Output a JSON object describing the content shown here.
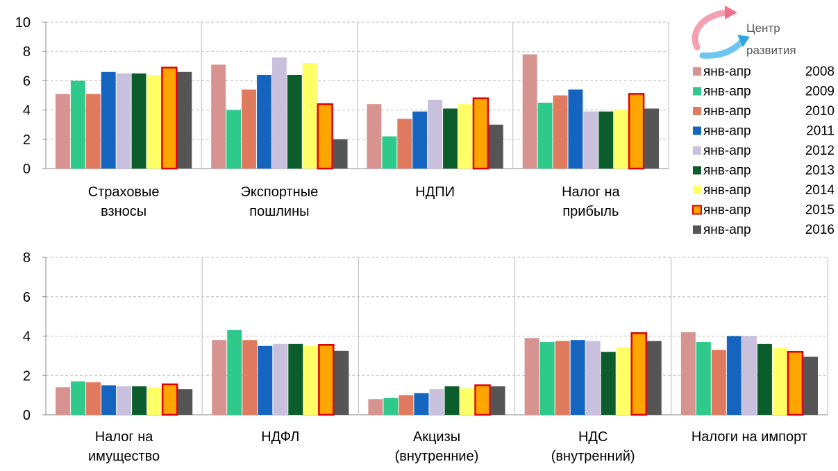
{
  "logo": {
    "line1": "Центр",
    "line2": "развития"
  },
  "colors": {
    "series": [
      "#d69390",
      "#2fc98c",
      "#e07a5f",
      "#1565c0",
      "#c9c0dd",
      "#0b5e2b",
      "#ffff66",
      "#ffa500",
      "#555555"
    ],
    "highlight_edge": "#e00000",
    "grid": "#bbbbbb",
    "axis": "#888888"
  },
  "legend": [
    {
      "label": "янв-апр",
      "year": "2008"
    },
    {
      "label": "янв-апр",
      "year": "2009"
    },
    {
      "label": "янв-апр",
      "year": "2010"
    },
    {
      "label": "янв-апр",
      "year": "2011"
    },
    {
      "label": "янв-апр",
      "year": "2012"
    },
    {
      "label": "янв-апр",
      "year": "2013"
    },
    {
      "label": "янв-апр",
      "year": "2014"
    },
    {
      "label": "янв-апр",
      "year": "2015"
    },
    {
      "label": "янв-апр",
      "year": "2016"
    }
  ],
  "chart_data": [
    {
      "type": "bar",
      "categories": [
        [
          "Страховые",
          "взносы"
        ],
        [
          "Экспортные",
          "пошлины"
        ],
        [
          "НДПИ"
        ],
        [
          "Налог  на",
          "прибыль"
        ]
      ],
      "ylim": [
        0,
        10
      ],
      "yticks": [
        0,
        2,
        4,
        6,
        8,
        10
      ],
      "grid": true,
      "legend_position": "right",
      "series": [
        {
          "name": "янв-апр 2008",
          "values": [
            5.1,
            7.1,
            4.4,
            7.8
          ]
        },
        {
          "name": "янв-апр 2009",
          "values": [
            6.0,
            4.0,
            2.2,
            4.5
          ]
        },
        {
          "name": "янв-апр 2010",
          "values": [
            5.1,
            5.4,
            3.4,
            5.0
          ]
        },
        {
          "name": "янв-апр 2011",
          "values": [
            6.6,
            6.4,
            3.9,
            5.4
          ]
        },
        {
          "name": "янв-апр 2012",
          "values": [
            6.5,
            7.6,
            4.7,
            3.9
          ]
        },
        {
          "name": "янв-апр 2013",
          "values": [
            6.5,
            6.4,
            4.1,
            3.9
          ]
        },
        {
          "name": "янв-апр 2014",
          "values": [
            6.4,
            7.2,
            4.4,
            4.0
          ]
        },
        {
          "name": "янв-апр 2015",
          "values": [
            6.9,
            4.4,
            4.8,
            5.1
          ]
        },
        {
          "name": "янв-апр 2016",
          "values": [
            6.6,
            2.0,
            3.0,
            4.1
          ]
        }
      ]
    },
    {
      "type": "bar",
      "categories": [
        [
          "Налог  на",
          "имущество"
        ],
        [
          "НДФЛ"
        ],
        [
          "Акцизы",
          "(внутренние)"
        ],
        [
          "НДС",
          "(внутренний)"
        ],
        [
          "Налоги на импорт"
        ]
      ],
      "ylim": [
        0,
        8
      ],
      "yticks": [
        0,
        2,
        4,
        6,
        8
      ],
      "grid": true,
      "series": [
        {
          "name": "янв-апр 2008",
          "values": [
            1.4,
            3.8,
            0.8,
            3.9,
            4.2
          ]
        },
        {
          "name": "янв-апр 2009",
          "values": [
            1.7,
            4.3,
            0.85,
            3.7,
            3.7
          ]
        },
        {
          "name": "янв-апр 2010",
          "values": [
            1.65,
            3.8,
            1.0,
            3.75,
            3.3
          ]
        },
        {
          "name": "янв-апр 2011",
          "values": [
            1.5,
            3.5,
            1.1,
            3.8,
            4.0
          ]
        },
        {
          "name": "янв-апр 2012",
          "values": [
            1.45,
            3.6,
            1.3,
            3.75,
            4.0
          ]
        },
        {
          "name": "янв-апр 2013",
          "values": [
            1.45,
            3.6,
            1.45,
            3.2,
            3.6
          ]
        },
        {
          "name": "янв-апр 2014",
          "values": [
            1.4,
            3.5,
            1.35,
            3.45,
            3.4
          ]
        },
        {
          "name": "янв-апр 2015",
          "values": [
            1.55,
            3.55,
            1.5,
            4.15,
            3.2
          ]
        },
        {
          "name": "янв-апр 2016",
          "values": [
            1.3,
            3.25,
            1.45,
            3.75,
            2.95
          ]
        }
      ]
    }
  ]
}
